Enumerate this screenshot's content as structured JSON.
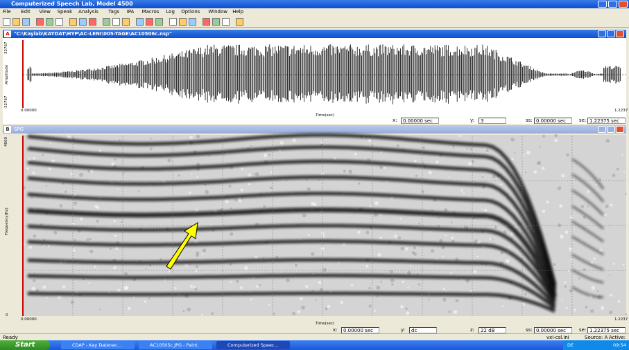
{
  "app_title": "Computerized Speech Lab, Model 4500",
  "menu": [
    "File",
    "Edit",
    "View",
    "Speak",
    "Analysis",
    "Tags",
    "IPA",
    "Macros",
    "Log",
    "Options",
    "Window",
    "Help"
  ],
  "window_a": {
    "letter": "A",
    "title": "\"C:\\Kaylab\\KAYDAT\\HYP\\AC-LENI\\005-TAGE\\AC10506c.nsp\"",
    "y_top": "32767",
    "y_label": "Amplitude",
    "y_bottom": "-32767",
    "x_start": "0.00000",
    "x_end": "1.2237",
    "x_label": "Time(sec)",
    "status": [
      {
        "label": "x:",
        "value": "0.00000 sec"
      },
      {
        "label": "y:",
        "value": "3"
      },
      {
        "label": "ss:",
        "value": "0.00000 sec"
      },
      {
        "label": "se:",
        "value": "1.22375 sec"
      }
    ]
  },
  "window_b": {
    "letter": "B",
    "title": "SPG",
    "y_top": "4000",
    "y_label": "Frequency(Hz)",
    "y_bottom": "0",
    "x_start": "0.00000",
    "x_end": "1.2237",
    "x_label": "Time(sec)",
    "status": [
      {
        "label": "x:",
        "value": "0.00000 sec"
      },
      {
        "label": "y:",
        "value": "dc"
      },
      {
        "label": "z:",
        "value": "22 dB"
      },
      {
        "label": "ss:",
        "value": "0.00000 sec"
      },
      {
        "label": "se:",
        "value": "1.22375 sec"
      }
    ]
  },
  "status_bar": {
    "text": "Ready",
    "ini": "vxi-csl.ini",
    "source": "Source: A",
    "active": "Active:"
  },
  "taskbar": {
    "start": "Start",
    "items": [
      "CDAP - Kay Datener...",
      "AC10505c.JPG - Paint",
      "Computerized Speec..."
    ],
    "lang": "DE",
    "clock": "09:54"
  }
}
